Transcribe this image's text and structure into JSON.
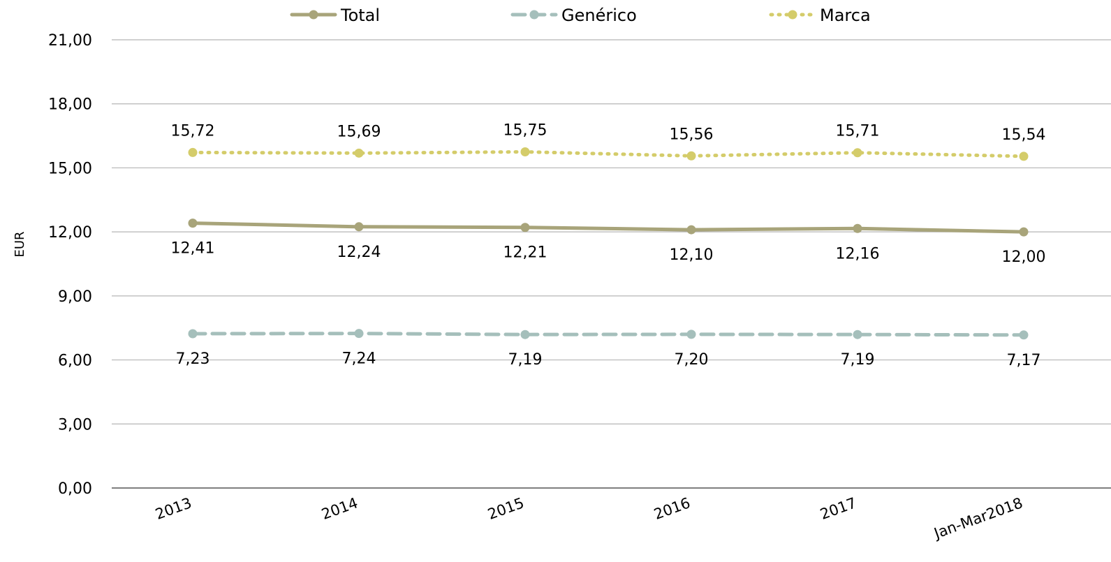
{
  "chart_data": {
    "type": "line",
    "title": "",
    "xlabel": "",
    "ylabel": "EUR",
    "ylim": [
      0,
      21
    ],
    "y_ticks": [
      "0,00",
      "3,00",
      "6,00",
      "9,00",
      "12,00",
      "15,00",
      "18,00",
      "21,00"
    ],
    "categories": [
      "2013",
      "2014",
      "2015",
      "2016",
      "2017",
      "Jan-Mar2018"
    ],
    "grid": true,
    "legend_position": "top",
    "series": [
      {
        "name": "Total",
        "values": [
          12.41,
          12.24,
          12.21,
          12.1,
          12.16,
          12.0
        ],
        "labels": [
          "12,41",
          "12,24",
          "12,21",
          "12,10",
          "12,16",
          "12,00"
        ],
        "color": "#a8a47a",
        "line_style": "solid",
        "label_position": "below"
      },
      {
        "name": "Genérico",
        "values": [
          7.23,
          7.24,
          7.19,
          7.2,
          7.19,
          7.17
        ],
        "labels": [
          "7,23",
          "7,24",
          "7,19",
          "7,20",
          "7,19",
          "7,17"
        ],
        "color": "#a5bfbb",
        "line_style": "dashed",
        "label_position": "below"
      },
      {
        "name": "Marca",
        "values": [
          15.72,
          15.69,
          15.75,
          15.56,
          15.71,
          15.54
        ],
        "labels": [
          "15,72",
          "15,69",
          "15,75",
          "15,56",
          "15,71",
          "15,54"
        ],
        "color": "#d4cc6a",
        "line_style": "dotted",
        "label_position": "above"
      }
    ]
  }
}
